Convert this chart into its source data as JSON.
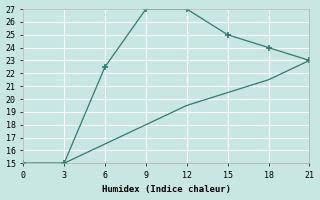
{
  "xlabel": "Humidex (Indice chaleur)",
  "line1_x": [
    0,
    3,
    6,
    9,
    12,
    15,
    18,
    21
  ],
  "line1_y": [
    15,
    15,
    22.5,
    27,
    27,
    25,
    24,
    23
  ],
  "line2_x": [
    0,
    3,
    6,
    9,
    12,
    15,
    18,
    21
  ],
  "line2_y": [
    15,
    15,
    16.5,
    18,
    19.5,
    20.5,
    21.5,
    23
  ],
  "line_color": "#2e7d6e",
  "bg_color": "#c8e6e2",
  "grid_color": "#ffffff",
  "xlim": [
    0,
    21
  ],
  "ylim": [
    15,
    27
  ],
  "xticks": [
    0,
    3,
    6,
    9,
    12,
    15,
    18,
    21
  ],
  "yticks": [
    15,
    16,
    17,
    18,
    19,
    20,
    21,
    22,
    23,
    24,
    25,
    26,
    27
  ],
  "marker": "+"
}
